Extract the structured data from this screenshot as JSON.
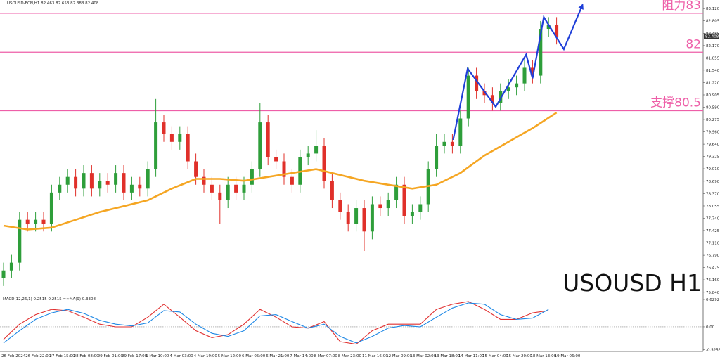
{
  "chart_data": [
    {
      "type": "candlestick",
      "title": "USOUSD H1",
      "subtitle": "USOUSD-ECN,H1 82.463 82.653 82.388 82.408",
      "categories": [
        "26 Feb 2024",
        null,
        null,
        "26 Feb 22:00",
        null,
        null,
        "27 Feb 15:00",
        null,
        null,
        "28 Feb 08:00",
        null,
        null,
        "29 Feb 01:00",
        null,
        null,
        "29 Feb 17:00",
        null,
        null,
        "1 Mar 10:00",
        null,
        null,
        "4 Mar 03:00",
        null,
        null,
        "4 Mar 19:00",
        null,
        null,
        "5 Mar 12:00",
        null,
        null,
        "6 Mar 05:00",
        null,
        null,
        "6 Mar 21:00",
        null,
        null,
        "7 Mar 14:00",
        null,
        null,
        "8 Mar 07:00",
        null,
        null,
        "8 Mar 23:00",
        null,
        null,
        "11 Mar 16:00",
        null,
        null,
        "12 Mar 09:00",
        null,
        null,
        "13 Mar 02:00",
        null,
        null,
        "13 Mar 18:00",
        null,
        null,
        "14 Mar 11:00",
        null,
        null,
        "15 Mar 04:00",
        null,
        null,
        "15 Mar 20:00",
        null,
        null,
        "18 Mar 13:00",
        null,
        null,
        "19 Mar 06:00"
      ],
      "open": [
        76.2,
        76.4,
        76.6,
        77.7,
        77.6,
        77.7,
        77.6,
        78.4,
        78.6,
        78.8,
        78.5,
        78.9,
        78.5,
        78.7,
        78.6,
        78.9,
        78.4,
        78.6,
        78.5,
        79.0,
        80.2,
        79.9,
        79.7,
        79.9,
        79.2,
        78.8,
        78.6,
        78.4,
        78.2,
        78.6,
        78.4,
        78.6,
        79.0,
        80.2,
        79.3,
        79.2,
        78.8,
        78.6,
        79.3,
        79.4,
        79.6,
        78.7,
        78.2,
        77.9,
        77.6,
        78.0,
        77.4,
        78.1,
        78.0,
        78.2,
        78.6,
        77.8,
        77.9,
        78.1,
        79.0,
        79.6,
        79.7,
        79.6,
        80.3,
        81.4,
        81.0,
        80.9,
        80.7,
        81.0,
        81.1,
        81.2,
        81.6,
        81.4,
        82.6,
        82.7
      ],
      "high": [
        76.6,
        76.8,
        77.9,
        77.9,
        77.9,
        77.9,
        78.6,
        78.8,
        79.0,
        79.0,
        79.1,
        79.1,
        78.9,
        78.9,
        79.1,
        79.1,
        78.8,
        78.8,
        79.2,
        80.8,
        80.4,
        80.1,
        80.1,
        80.1,
        79.4,
        79.0,
        78.8,
        78.6,
        78.8,
        78.8,
        78.8,
        79.2,
        80.7,
        80.4,
        79.5,
        79.4,
        79.0,
        79.5,
        79.6,
        80.0,
        79.8,
        78.9,
        78.4,
        78.1,
        78.2,
        78.2,
        78.3,
        78.3,
        78.4,
        78.8,
        78.8,
        78.1,
        78.3,
        79.2,
        79.9,
        79.9,
        79.9,
        80.5,
        81.6,
        81.6,
        81.2,
        81.1,
        81.2,
        81.3,
        81.4,
        81.8,
        81.8,
        82.8,
        82.9,
        82.9
      ],
      "low": [
        76.0,
        76.2,
        76.4,
        77.4,
        77.4,
        77.4,
        77.4,
        78.2,
        78.4,
        78.3,
        78.3,
        78.3,
        78.3,
        78.4,
        78.4,
        78.2,
        78.2,
        78.3,
        78.3,
        78.8,
        79.7,
        79.5,
        79.5,
        79.0,
        78.6,
        78.4,
        78.2,
        77.6,
        78.0,
        78.2,
        78.2,
        78.4,
        78.8,
        79.1,
        79.0,
        78.6,
        78.4,
        78.4,
        79.1,
        79.2,
        78.5,
        78.0,
        77.7,
        77.4,
        77.4,
        76.9,
        77.2,
        77.8,
        77.8,
        78.0,
        77.6,
        77.6,
        77.7,
        77.9,
        78.8,
        79.4,
        79.4,
        79.4,
        80.1,
        80.8,
        80.7,
        80.5,
        80.5,
        80.8,
        80.9,
        81.0,
        81.2,
        81.2,
        82.4,
        82.2
      ],
      "close": [
        76.4,
        76.6,
        77.7,
        77.6,
        77.7,
        77.6,
        78.4,
        78.6,
        78.8,
        78.5,
        78.9,
        78.5,
        78.7,
        78.6,
        78.9,
        78.4,
        78.6,
        78.5,
        79.0,
        80.2,
        79.9,
        79.7,
        79.9,
        79.2,
        78.8,
        78.6,
        78.4,
        78.2,
        78.6,
        78.4,
        78.6,
        79.0,
        80.2,
        79.3,
        79.2,
        78.8,
        78.6,
        79.3,
        79.4,
        79.6,
        78.7,
        78.2,
        77.9,
        77.6,
        78.0,
        77.4,
        78.1,
        78.0,
        78.2,
        78.6,
        77.8,
        77.9,
        78.1,
        79.0,
        79.6,
        79.7,
        79.6,
        80.3,
        81.4,
        81.0,
        80.9,
        80.7,
        81.0,
        81.1,
        81.2,
        81.6,
        81.4,
        82.6,
        82.7,
        82.4
      ],
      "up_color": "#2e9e3a",
      "down_color": "#e0302a",
      "ma": {
        "color": "#f5a623",
        "x": [
          0,
          3,
          6,
          9,
          12,
          15,
          18,
          21,
          24,
          27,
          30,
          33,
          36,
          39,
          42,
          45,
          48,
          51,
          54,
          57,
          60,
          63,
          66,
          69
        ],
        "values": [
          77.55,
          77.45,
          77.5,
          77.7,
          77.9,
          78.05,
          78.2,
          78.5,
          78.75,
          78.75,
          78.7,
          78.8,
          78.9,
          79.0,
          78.85,
          78.7,
          78.6,
          78.5,
          78.6,
          78.9,
          79.35,
          79.7,
          80.05,
          80.45
        ]
      },
      "zigzag": {
        "color": "#1f3fd8",
        "x": [
          56.1,
          57.9,
          61.4,
          65.2,
          66,
          67.4,
          69.9,
          72.2
        ],
        "values": [
          79.75,
          81.58,
          80.6,
          81.94,
          81.33,
          82.9,
          82.08,
          83.2
        ]
      },
      "levels": [
        {
          "value": 83,
          "label": "阻力83"
        },
        {
          "value": 82,
          "label": "82"
        },
        {
          "value": 80.5,
          "label": "支撑80.5"
        }
      ],
      "level_color": "#ee5fa8",
      "last_price": 82.408,
      "ylim": [
        75.8,
        83.34
      ],
      "yticks": [
        {
          "value": 83.12,
          "label": "83.120"
        },
        {
          "value": 82.805,
          "label": "82.805"
        },
        {
          "value": 82.485,
          "label": "82.485"
        },
        {
          "value": 82.17,
          "label": "82.170"
        },
        {
          "value": 81.855,
          "label": "81.855"
        },
        {
          "value": 81.54,
          "label": "81.540"
        },
        {
          "value": 81.22,
          "label": "81.220"
        },
        {
          "value": 80.905,
          "label": "80.905"
        },
        {
          "value": 80.59,
          "label": "80.590"
        },
        {
          "value": 80.275,
          "label": "80.275"
        },
        {
          "value": 79.96,
          "label": "79.960"
        },
        {
          "value": 79.64,
          "label": "79.640"
        },
        {
          "value": 79.325,
          "label": "79.325"
        },
        {
          "value": 79.01,
          "label": "79.010"
        },
        {
          "value": 78.69,
          "label": "78.690"
        },
        {
          "value": 78.37,
          "label": "78.370"
        },
        {
          "value": 78.055,
          "label": "78.055"
        },
        {
          "value": 77.74,
          "label": "77.740"
        },
        {
          "value": 77.425,
          "label": "77.425"
        },
        {
          "value": 77.11,
          "label": "77.110"
        },
        {
          "value": 76.79,
          "label": "76.790"
        },
        {
          "value": 76.475,
          "label": "76.475"
        },
        {
          "value": 76.16,
          "label": "76.160"
        },
        {
          "value": 75.84,
          "label": "75.840"
        }
      ]
    },
    {
      "type": "line",
      "title": "MACD(12,26,1) 0.2515 0.2515 ≈≈MA(9) 0.3308",
      "x": [
        0,
        2,
        4,
        6,
        8,
        10,
        12,
        14,
        16,
        18,
        20,
        22,
        24,
        26,
        28,
        30,
        32,
        34,
        36,
        38,
        40,
        42,
        44,
        46,
        48,
        50,
        52,
        54,
        56,
        58,
        60,
        62,
        64,
        66,
        68
      ],
      "series": [
        {
          "color": "#e03030",
          "values": [
            -0.29,
            0.06,
            0.28,
            0.4,
            0.37,
            0.22,
            0.06,
            0.0,
            0.0,
            0.22,
            0.52,
            0.22,
            -0.09,
            -0.25,
            -0.18,
            0.06,
            0.4,
            0.22,
            0.0,
            -0.03,
            0.12,
            -0.34,
            -0.4,
            -0.09,
            0.06,
            0.06,
            0.06,
            0.4,
            0.52,
            0.58,
            0.4,
            0.17,
            0.17,
            0.32,
            0.37
          ]
        },
        {
          "color": "#1e88e5",
          "values": [
            -0.37,
            -0.09,
            0.17,
            0.32,
            0.4,
            0.31,
            0.15,
            0.06,
            0.02,
            0.09,
            0.37,
            0.34,
            0.06,
            -0.15,
            -0.22,
            -0.09,
            0.25,
            0.28,
            0.12,
            -0.03,
            0.06,
            -0.22,
            -0.37,
            -0.22,
            -0.03,
            0.03,
            0.0,
            0.22,
            0.43,
            0.55,
            0.52,
            0.28,
            0.17,
            0.2,
            0.4
          ]
        }
      ],
      "zero_line": true,
      "ylim": [
        -0.55,
        0.71
      ],
      "yticks": [
        0.6292,
        {
          "value": 0,
          "label": "0.00"
        },
        -0.5256
      ]
    }
  ]
}
